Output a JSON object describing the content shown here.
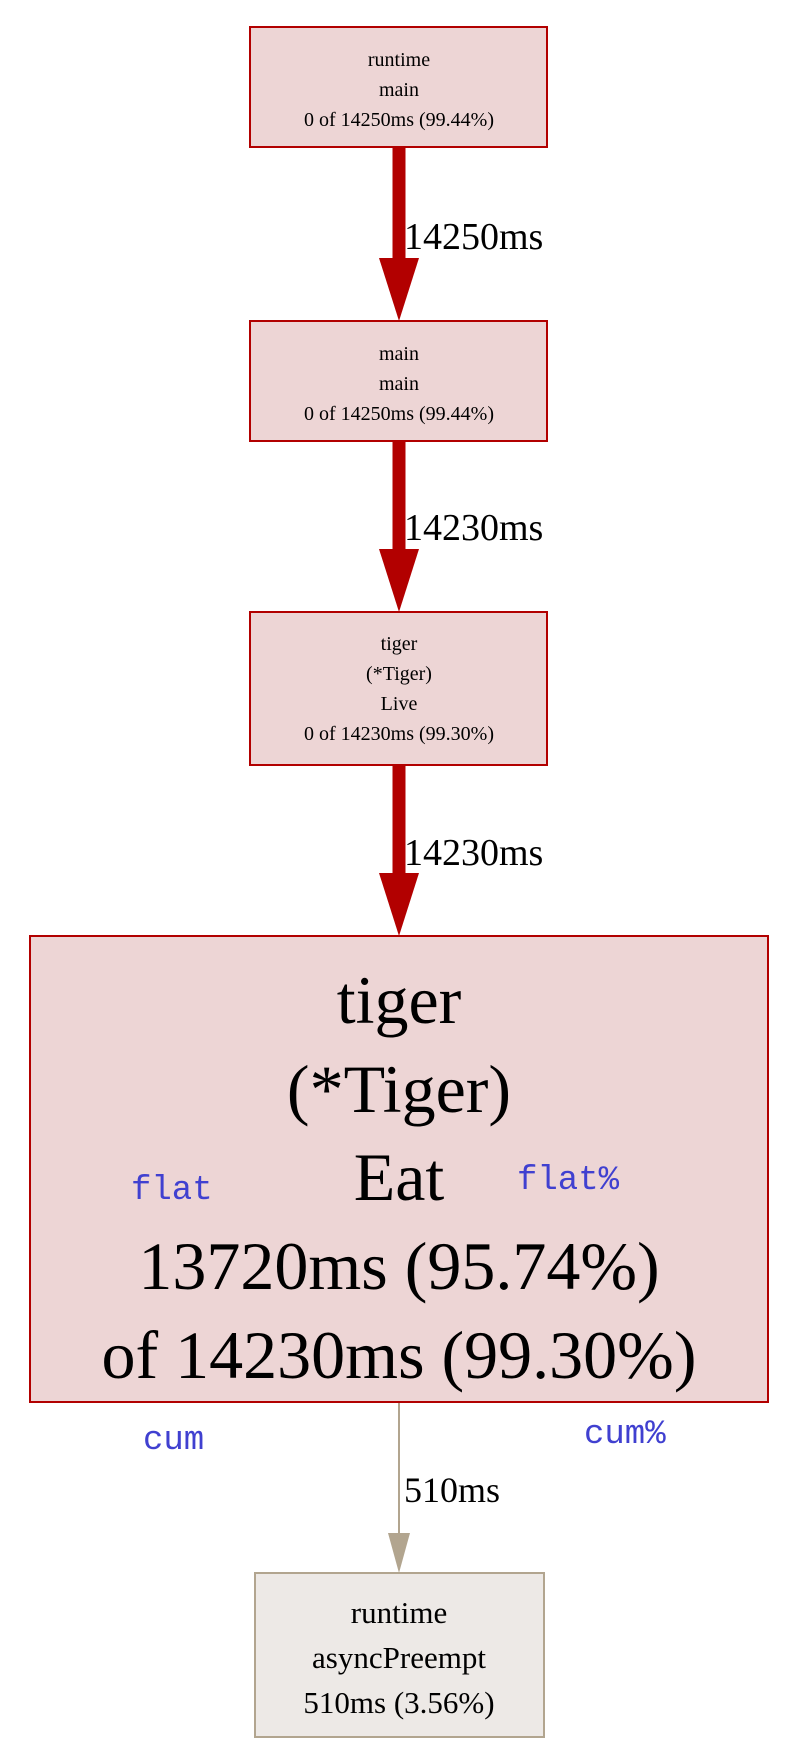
{
  "colors": {
    "hot_fill": "#edd5d5",
    "hot_stroke": "#b20000",
    "cold_fill": "#ede9e6",
    "cold_stroke": "#b2a58f",
    "annotation": "#4040d0"
  },
  "nodes": [
    {
      "lines": [
        "runtime",
        "main",
        "0 of 14250ms (99.44%)"
      ]
    },
    {
      "lines": [
        "main",
        "main",
        "0 of 14250ms (99.44%)"
      ]
    },
    {
      "lines": [
        "tiger",
        "(*Tiger)",
        "Live",
        "0 of 14230ms (99.30%)"
      ]
    },
    {
      "lines": [
        "tiger",
        "(*Tiger)",
        "Eat",
        "13720ms (95.74%)",
        "of 14230ms (99.30%)"
      ]
    },
    {
      "lines": [
        "runtime",
        "asyncPreempt",
        "510ms (3.56%)"
      ]
    }
  ],
  "edges": [
    {
      "label": "14250ms"
    },
    {
      "label": "14230ms"
    },
    {
      "label": "14230ms"
    },
    {
      "label": "510ms"
    }
  ],
  "annotations": {
    "flat": "flat",
    "flat_pct": "flat%",
    "cum": "cum",
    "cum_pct": "cum%"
  }
}
